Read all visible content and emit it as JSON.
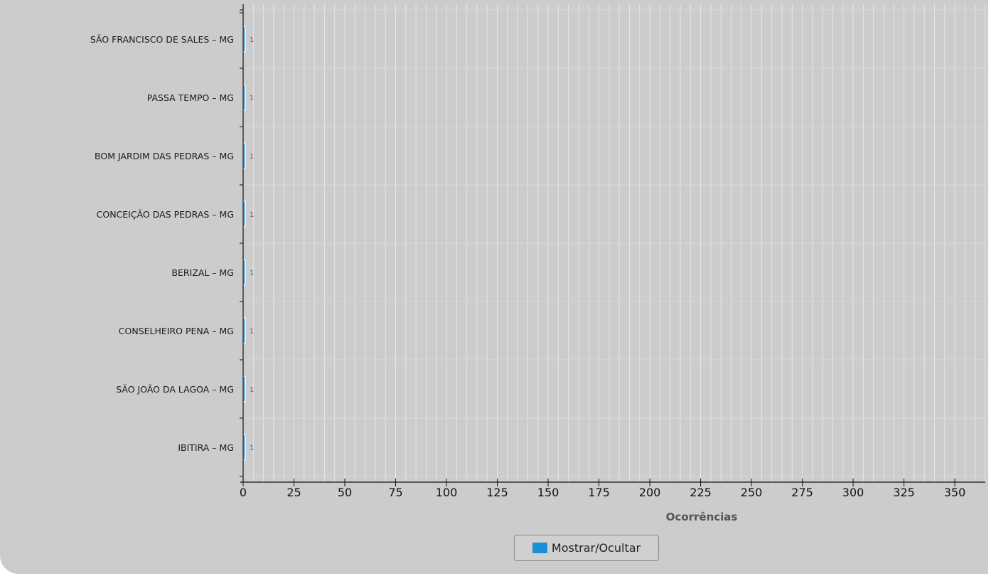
{
  "chart_data": {
    "type": "bar",
    "orientation": "horizontal",
    "categories": [
      "SÃO FRANCISCO DE SALES – MG",
      "PASSA TEMPO – MG",
      "BOM JARDIM DAS PEDRAS – MG",
      "CONCEIÇÃO DAS PEDRAS – MG",
      "BERIZAL – MG",
      "CONSELHEIRO PENA – MG",
      "SÃO JOÃO DA LAGOA – MG",
      "IBITIRA – MG"
    ],
    "values": [
      1,
      1,
      1,
      1,
      1,
      1,
      1,
      1
    ],
    "data_labels": [
      "1",
      "1",
      "1",
      "1",
      "1",
      "1",
      "1",
      "1"
    ],
    "xlabel": "Ocorrências",
    "ylabel": "",
    "xlim": [
      0,
      365
    ],
    "x_ticks": [
      0,
      25,
      50,
      75,
      100,
      125,
      150,
      175,
      200,
      225,
      250,
      275,
      300,
      325,
      350
    ],
    "x_tick_labels": [
      "0",
      "25",
      "50",
      "75",
      "100",
      "125",
      "150",
      "175",
      "200",
      "225",
      "250",
      "275",
      "300",
      "325",
      "350"
    ],
    "grid": true,
    "bar_color": "#1b8fd6"
  },
  "legend": {
    "label": "Mostrar/Ocultar",
    "color": "#1b8fd6",
    "placement": "bottom-center"
  }
}
